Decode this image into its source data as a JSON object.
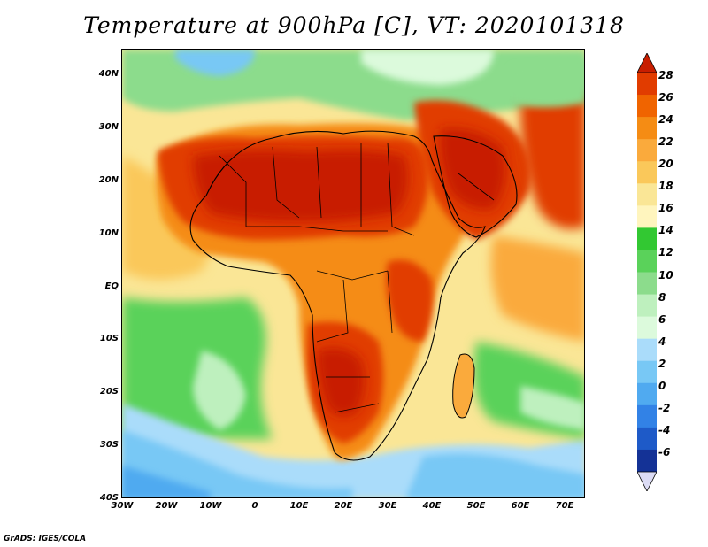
{
  "title": "Temperature at 900hPa [C], VT: 2020101318",
  "footer": "GrADS: IGES/COLA",
  "axes": {
    "y_ticks": [
      "40N",
      "30N",
      "20N",
      "10N",
      "EQ",
      "10S",
      "20S",
      "30S",
      "40S"
    ],
    "x_ticks": [
      "30W",
      "20W",
      "10W",
      "0",
      "10E",
      "20E",
      "30E",
      "40E",
      "50E",
      "60E",
      "70E"
    ]
  },
  "colorbar": {
    "labels": [
      "28",
      "26",
      "24",
      "22",
      "20",
      "18",
      "16",
      "14",
      "12",
      "10",
      "8",
      "6",
      "4",
      "2",
      "0",
      "-2",
      "-4",
      "-6"
    ],
    "colors": [
      "#c81e00",
      "#e13c00",
      "#f06400",
      "#f58c14",
      "#faaa3c",
      "#fac85a",
      "#fae696",
      "#fff5be",
      "#32c832",
      "#5ad25a",
      "#8cdc8c",
      "#bef0be",
      "#dcfadc",
      "#aadcfa",
      "#78c8f5",
      "#50aaf0",
      "#3282e6",
      "#1e5ac8",
      "#143296",
      "#0a1464"
    ]
  },
  "map": {
    "background": "#fae696",
    "ocean_south": "#aadcfa",
    "ocean_cold": "#78c8f5",
    "ocean_green": "#8cdc8c",
    "land_hot": "#e13c00",
    "land_warm": "#f58c14",
    "land_very_hot": "#c81e00"
  }
}
